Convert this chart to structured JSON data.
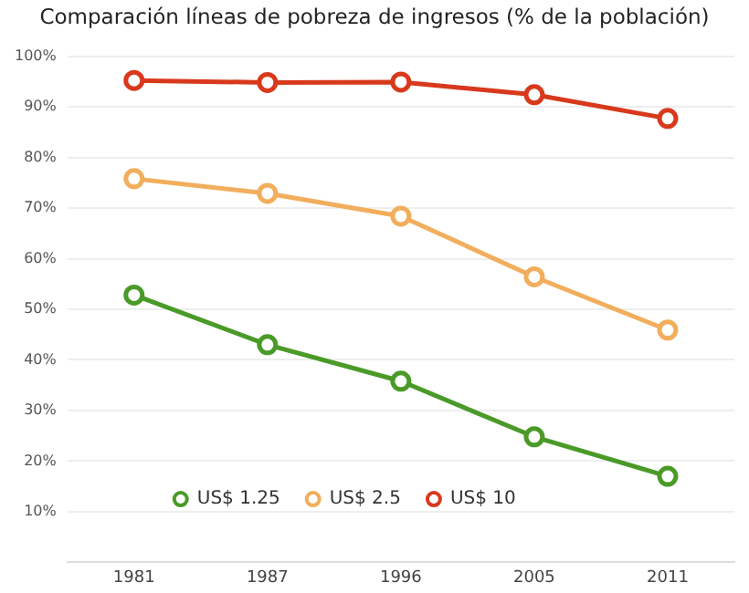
{
  "chart_data": {
    "type": "line",
    "title": "Comparación líneas de pobreza de ingresos (% de la población)",
    "categories": [
      "1981",
      "1987",
      "1996",
      "2005",
      "2011"
    ],
    "series": [
      {
        "name": "US$ 1.25",
        "color": "#4a9a28",
        "values": [
          52.8,
          43.0,
          35.8,
          24.8,
          17.0
        ]
      },
      {
        "name": "US$ 2.5",
        "color": "#f2ae5c",
        "values": [
          75.8,
          72.9,
          68.4,
          56.4,
          45.9
        ]
      },
      {
        "name": "US$ 10",
        "color": "#d8391c",
        "values": [
          95.2,
          94.8,
          94.9,
          92.4,
          87.7
        ]
      }
    ],
    "ylim": [
      0,
      100
    ],
    "yticks": [
      {
        "value": 0,
        "label": null
      },
      {
        "value": 10,
        "label": "10%"
      },
      {
        "value": 20,
        "label": "20%"
      },
      {
        "value": 30,
        "label": "30%"
      },
      {
        "value": 40,
        "label": "40%"
      },
      {
        "value": 50,
        "label": "50%"
      },
      {
        "value": 60,
        "label": "60%"
      },
      {
        "value": 70,
        "label": "70%"
      },
      {
        "value": 80,
        "label": "80%"
      },
      {
        "value": 90,
        "label": "90%"
      },
      {
        "value": 100,
        "label": "100%"
      }
    ],
    "grid": "y",
    "legend": "bottom left",
    "marker": "circle",
    "line_style": "solid"
  }
}
